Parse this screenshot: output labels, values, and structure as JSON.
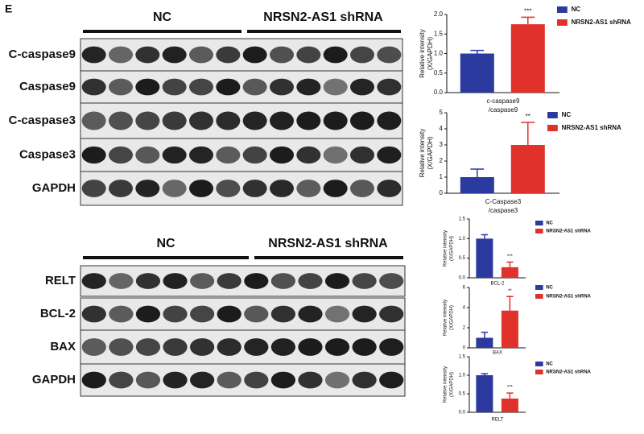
{
  "panel_label": "E",
  "blot_top": {
    "groups": [
      "NC",
      "NRSN2-AS1 shRNA"
    ],
    "rows": [
      "C-caspase9",
      "Caspase9",
      "C-caspase3",
      "Caspase3",
      "GAPDH"
    ]
  },
  "blot_bottom": {
    "groups": [
      "NC",
      "NRSN2-AS1 shRNA"
    ],
    "rows": [
      "RELT",
      "BCL-2",
      "BAX",
      "GAPDH"
    ]
  },
  "chart_data": [
    {
      "type": "bar",
      "ylabel": [
        "Relative intensity",
        "(X/GAPDH)"
      ],
      "xlabel": [
        "c-caspase9",
        "/caspase9"
      ],
      "annotation": "***",
      "series": [
        {
          "name": "NC",
          "color": "#2b3a9e",
          "values": [
            1.0
          ],
          "errors": [
            0.08
          ]
        },
        {
          "name": "NRSN2-AS1 shRNA",
          "color": "#e0312b",
          "values": [
            1.75
          ],
          "errors": [
            0.18
          ]
        }
      ],
      "ylim": [
        0,
        2
      ],
      "yticks": [
        {
          "value": 0,
          "label": "0.0"
        },
        0.5,
        {
          "value": 1,
          "label": "1.0"
        },
        1.5,
        {
          "value": 2,
          "label": "2.0"
        }
      ]
    },
    {
      "type": "bar",
      "ylabel": [
        "Relative intensity",
        "(X/GAPDH)"
      ],
      "xlabel": [
        "C-Caspase3",
        "/caspase3"
      ],
      "annotation": "**",
      "series": [
        {
          "name": "NC",
          "color": "#2b3a9e",
          "values": [
            1.0
          ],
          "errors": [
            0.5
          ]
        },
        {
          "name": "NRSN2-AS1 shRNA",
          "color": "#e0312b",
          "values": [
            3.0
          ],
          "errors": [
            1.4
          ]
        }
      ],
      "ylim": [
        0,
        5
      ],
      "yticks": [
        0,
        1,
        2,
        3,
        4,
        5
      ]
    },
    {
      "type": "bar",
      "ylabel": [
        "Relative intensity",
        "(X/GAPDH)"
      ],
      "xlabel": [
        "BCL-2"
      ],
      "annotation": "***",
      "series": [
        {
          "name": "NC",
          "color": "#2b3a9e",
          "values": [
            1.0
          ],
          "errors": [
            0.1
          ]
        },
        {
          "name": "NRSN2-AS1 shRNA",
          "color": "#e0312b",
          "values": [
            0.27
          ],
          "errors": [
            0.13
          ]
        }
      ],
      "ylim": [
        0,
        1.5
      ],
      "yticks": [
        {
          "value": 0,
          "label": "0.0"
        },
        0.5,
        {
          "value": 1,
          "label": "1.0"
        },
        1.5
      ]
    },
    {
      "type": "bar",
      "ylabel": [
        "Relative intensity",
        "(X/GAPDH)"
      ],
      "xlabel": [
        "BAX"
      ],
      "annotation": "**",
      "series": [
        {
          "name": "NC",
          "color": "#2b3a9e",
          "values": [
            1.0
          ],
          "errors": [
            0.55
          ]
        },
        {
          "name": "NRSN2-AS1 shRNA",
          "color": "#e0312b",
          "values": [
            3.7
          ],
          "errors": [
            1.4
          ]
        }
      ],
      "ylim": [
        0,
        6
      ],
      "yticks": [
        0,
        2,
        4,
        6
      ]
    },
    {
      "type": "bar",
      "ylabel": [
        "Relative intensity",
        "(X/GAPDH)"
      ],
      "xlabel": [
        "RELT"
      ],
      "annotation": "***",
      "series": [
        {
          "name": "NC",
          "color": "#2b3a9e",
          "values": [
            1.0
          ],
          "errors": [
            0.04
          ]
        },
        {
          "name": "NRSN2-AS1 shRNA",
          "color": "#e0312b",
          "values": [
            0.37
          ],
          "errors": [
            0.15
          ]
        }
      ],
      "ylim": [
        0,
        1.5
      ],
      "yticks": [
        {
          "value": 0,
          "label": "0.0"
        },
        0.5,
        {
          "value": 1,
          "label": "1.0"
        },
        1.5
      ]
    }
  ]
}
